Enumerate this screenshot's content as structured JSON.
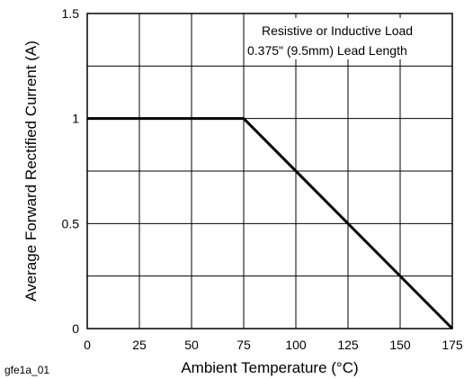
{
  "chart_data": {
    "type": "line",
    "xlabel": "Ambient Temperature (°C)",
    "ylabel": "Average Forward Rectified Current (A)",
    "xlim": [
      0,
      175
    ],
    "ylim": [
      0,
      1.5
    ],
    "x_ticks": [
      0,
      25,
      50,
      75,
      100,
      125,
      150,
      175
    ],
    "y_ticks": [
      0,
      0.5,
      1,
      1.5
    ],
    "x_tick_labels": [
      "0",
      "25",
      "50",
      "75",
      "100",
      "125",
      "150",
      "175"
    ],
    "y_tick_labels": [
      "0",
      "0.5",
      "1",
      "1.5"
    ],
    "y_grid_lines": [
      0.25,
      0.5,
      0.75,
      1,
      1.25
    ],
    "grid": true,
    "series": [
      {
        "x": [
          0,
          75,
          175
        ],
        "y": [
          1,
          1,
          0
        ]
      }
    ],
    "annotations": [
      "Resistive or Inductive Load",
      "0.375\" (9.5mm) Lead Length"
    ],
    "annotation_placement": "top-right",
    "figure_id": "gfe1a_01"
  }
}
